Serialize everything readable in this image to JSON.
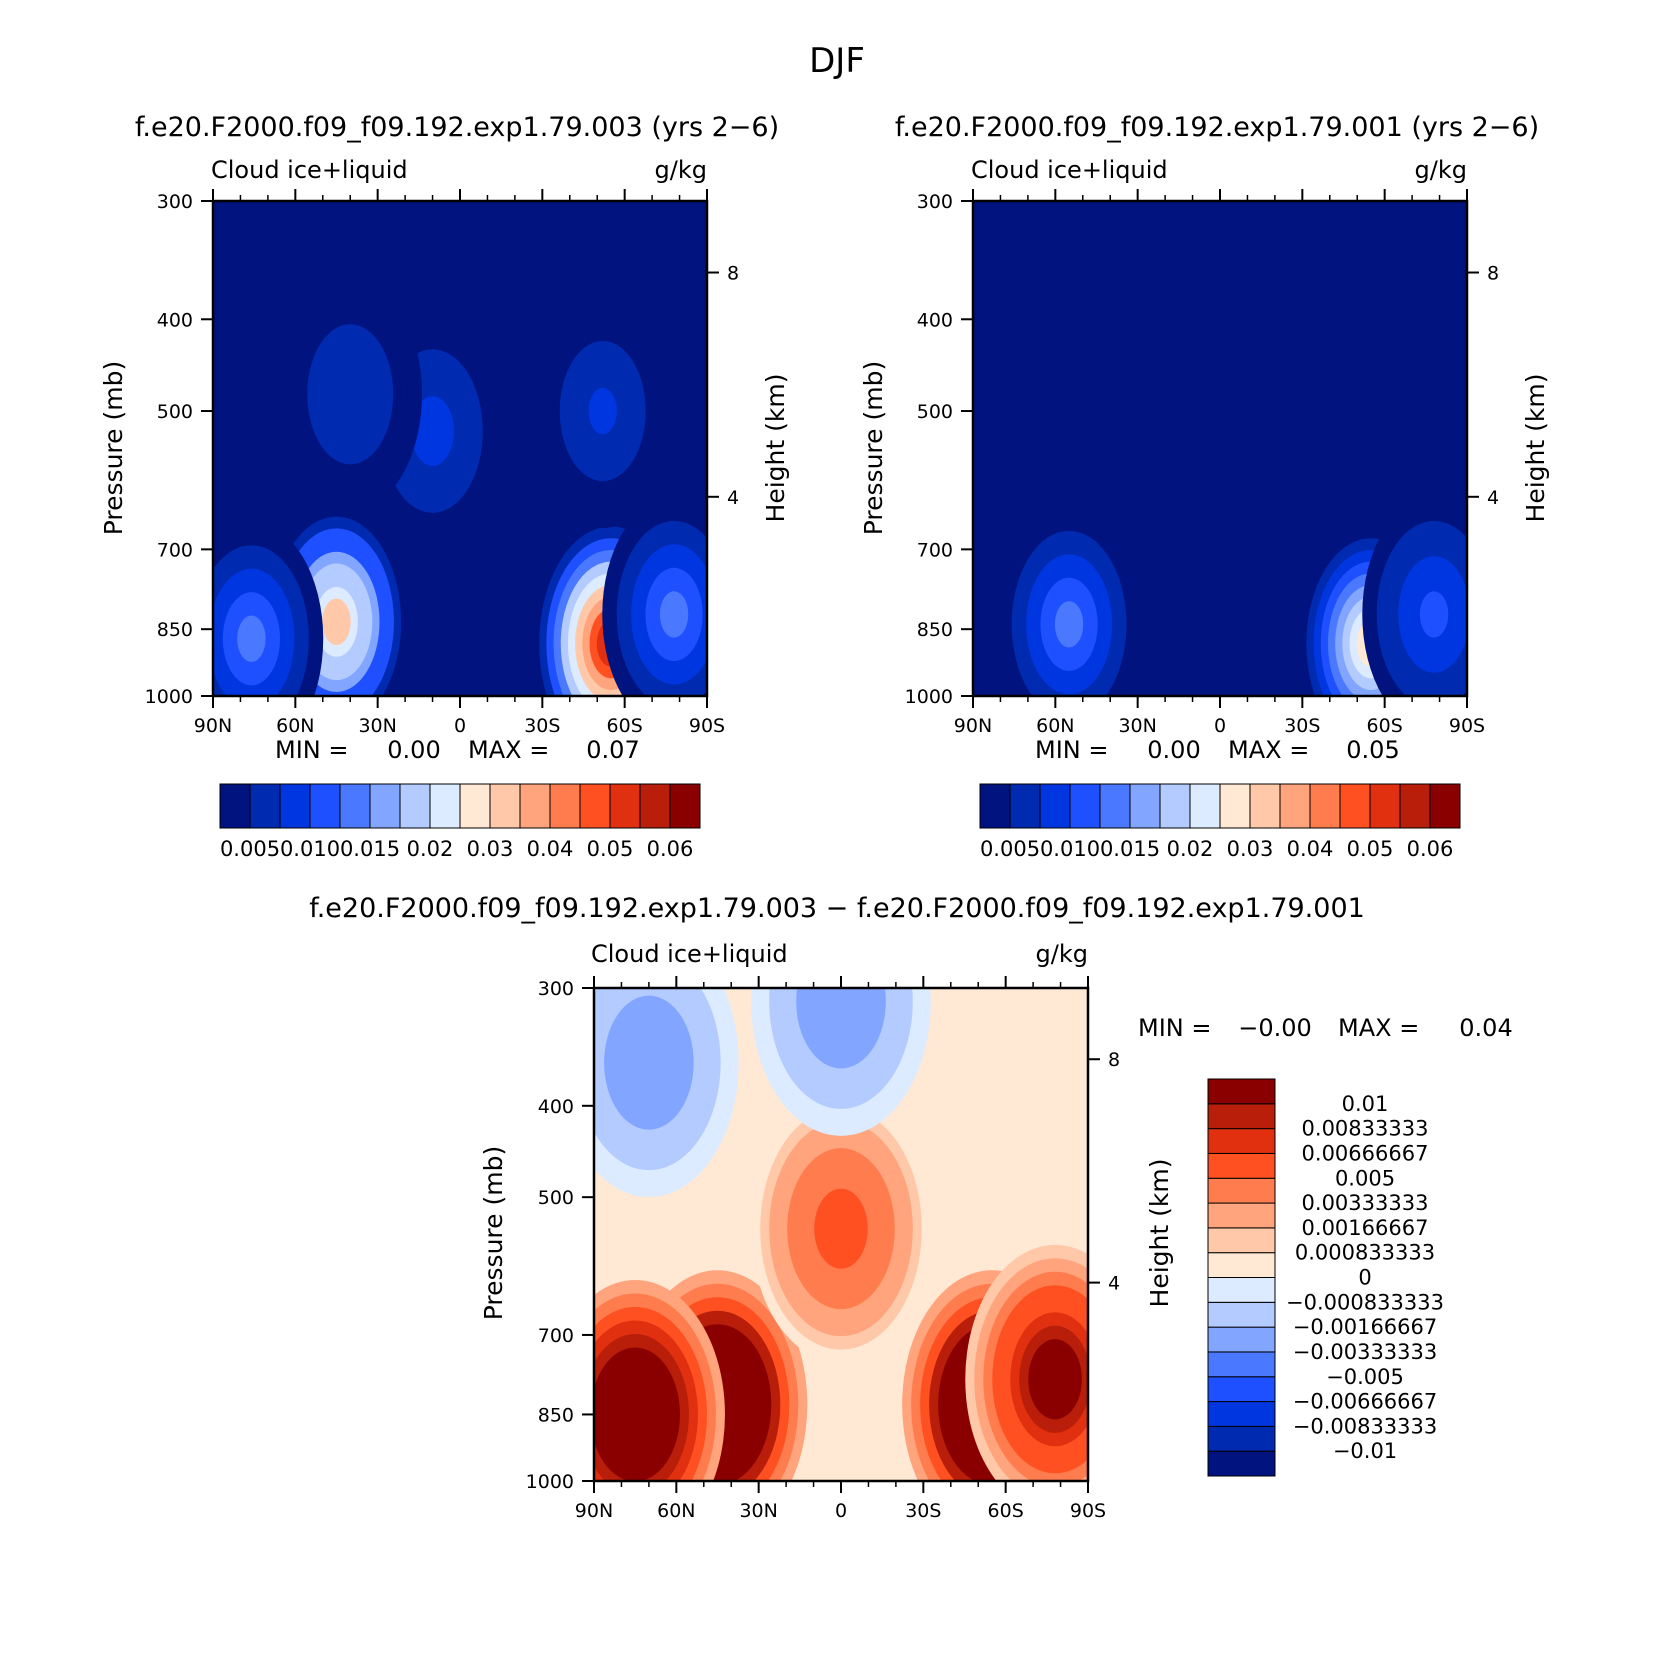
{
  "figure": {
    "season": "DJF",
    "panel1_title": "f.e20.F2000.f09_f09.192.exp1.79.003 (yrs 2−6)",
    "panel2_title": "f.e20.F2000.f09_f09.192.exp1.79.001 (yrs 2−6)",
    "diff_title": "f.e20.F2000.f09_f09.192.exp1.79.003 − f.e20.F2000.f09_f09.192.exp1.79.001"
  },
  "chart_data": [
    {
      "type": "heatmap",
      "subtitle_left": "Cloud ice+liquid",
      "subtitle_right": "g/kg",
      "ylabel": "Pressure (mb)",
      "y2label": "Height (km)",
      "xticks": [
        "90N",
        "60N",
        "30N",
        "0",
        "30S",
        "60S",
        "90S"
      ],
      "yticks": [
        "300",
        "400",
        "500",
        "700",
        "850",
        "1000"
      ],
      "y2ticks": [
        "8",
        "4"
      ],
      "min_label": "MIN =",
      "min_value": "0.00",
      "max_label": "MAX =",
      "max_value": "0.07",
      "colorbar_labels": [
        "0.005",
        "0.010",
        "0.015",
        "0.02",
        "0.03",
        "0.04",
        "0.05",
        "0.06"
      ],
      "levels": [
        0.005,
        0.01,
        0.015,
        0.02,
        0.025,
        0.03,
        0.035,
        0.04,
        0.045,
        0.05,
        0.055,
        0.06,
        0.065,
        0.07
      ],
      "colors": [
        "#00137f",
        "#002ab0",
        "#0036e0",
        "#1e50ff",
        "#4a78ff",
        "#82a6ff",
        "#b4cbff",
        "#dcebff",
        "#ffe8d4",
        "#ffc8a8",
        "#ffa47c",
        "#ff7c4e",
        "#ff5022",
        "#e03010",
        "#b81e0a",
        "#8a0000"
      ],
      "features": [
        {
          "lat": 45,
          "p": 835,
          "value": 0.045
        },
        {
          "lat": 76,
          "p": 870,
          "value": 0.022
        },
        {
          "lat": 10,
          "p": 525,
          "value": 0.012
        },
        {
          "lat": -55,
          "p": 880,
          "value": 0.068
        },
        {
          "lat": -78,
          "p": 820,
          "value": 0.02
        },
        {
          "lat": 40,
          "p": 480,
          "value": 0.009
        },
        {
          "lat": -52,
          "p": 500,
          "value": 0.01
        }
      ]
    },
    {
      "type": "heatmap",
      "subtitle_left": "Cloud ice+liquid",
      "subtitle_right": "g/kg",
      "ylabel": "Pressure (mb)",
      "y2label": "Height (km)",
      "xticks": [
        "90N",
        "60N",
        "30N",
        "0",
        "30S",
        "60S",
        "90S"
      ],
      "yticks": [
        "300",
        "400",
        "500",
        "700",
        "850",
        "1000"
      ],
      "y2ticks": [
        "8",
        "4"
      ],
      "min_label": "MIN =",
      "min_value": "0.00",
      "max_label": "MAX =",
      "max_value": "0.05",
      "colorbar_labels": [
        "0.005",
        "0.010",
        "0.015",
        "0.02",
        "0.03",
        "0.04",
        "0.05",
        "0.06"
      ],
      "levels": [
        0.005,
        0.01,
        0.015,
        0.02,
        0.025,
        0.03,
        0.035,
        0.04,
        0.045,
        0.05,
        0.055,
        0.06,
        0.065,
        0.07
      ],
      "colors": [
        "#00137f",
        "#002ab0",
        "#0036e0",
        "#1e50ff",
        "#4a78ff",
        "#82a6ff",
        "#b4cbff",
        "#dcebff",
        "#ffe8d4",
        "#ffc8a8",
        "#ffa47c",
        "#ff7c4e",
        "#ff5022",
        "#e03010",
        "#b81e0a",
        "#8a0000"
      ],
      "features": [
        {
          "lat": 55,
          "p": 840,
          "value": 0.022
        },
        {
          "lat": -55,
          "p": 880,
          "value": 0.042
        },
        {
          "lat": -78,
          "p": 820,
          "value": 0.016
        }
      ]
    },
    {
      "type": "heatmap",
      "subtitle_left": "Cloud ice+liquid",
      "subtitle_right": "g/kg",
      "ylabel": "Pressure (mb)",
      "y2label": "Height (km)",
      "xticks": [
        "90N",
        "60N",
        "30N",
        "0",
        "30S",
        "60S",
        "90S"
      ],
      "yticks": [
        "300",
        "400",
        "500",
        "700",
        "850",
        "1000"
      ],
      "y2ticks": [
        "8",
        "4"
      ],
      "min_label": "MIN =",
      "min_value": "−0.00",
      "max_label": "MAX =",
      "max_value": "0.04",
      "colorbar_labels": [
        "0.01",
        "0.00833333",
        "0.00666667",
        "0.005",
        "0.00333333",
        "0.00166667",
        "0.000833333",
        "0",
        "−0.000833333",
        "−0.00166667",
        "−0.00333333",
        "−0.005",
        "−0.00666667",
        "−0.00833333",
        "−0.01"
      ],
      "levels": [
        -0.01,
        -0.00833333,
        -0.00666667,
        -0.005,
        -0.00333333,
        -0.00166667,
        -0.000833333,
        0,
        0.000833333,
        0.00166667,
        0.00333333,
        0.005,
        0.00666667,
        0.00833333,
        0.01
      ],
      "colors": [
        "#00137f",
        "#002ab0",
        "#0036e0",
        "#1e50ff",
        "#4a78ff",
        "#82a6ff",
        "#b4cbff",
        "#dcebff",
        "#ffe8d4",
        "#ffc8a8",
        "#ffa47c",
        "#ff7c4e",
        "#ff5022",
        "#e03010",
        "#b81e0a",
        "#8a0000"
      ],
      "features": [
        {
          "lat": 45,
          "p": 830,
          "value": 0.02
        },
        {
          "lat": 75,
          "p": 850,
          "value": 0.016
        },
        {
          "lat": -55,
          "p": 830,
          "value": 0.02
        },
        {
          "lat": -78,
          "p": 780,
          "value": 0.012
        },
        {
          "lat": 0,
          "p": 540,
          "value": 0.006
        },
        {
          "lat": 70,
          "p": 360,
          "value": -0.003
        },
        {
          "lat": 0,
          "p": 310,
          "value": -0.003
        }
      ]
    }
  ]
}
